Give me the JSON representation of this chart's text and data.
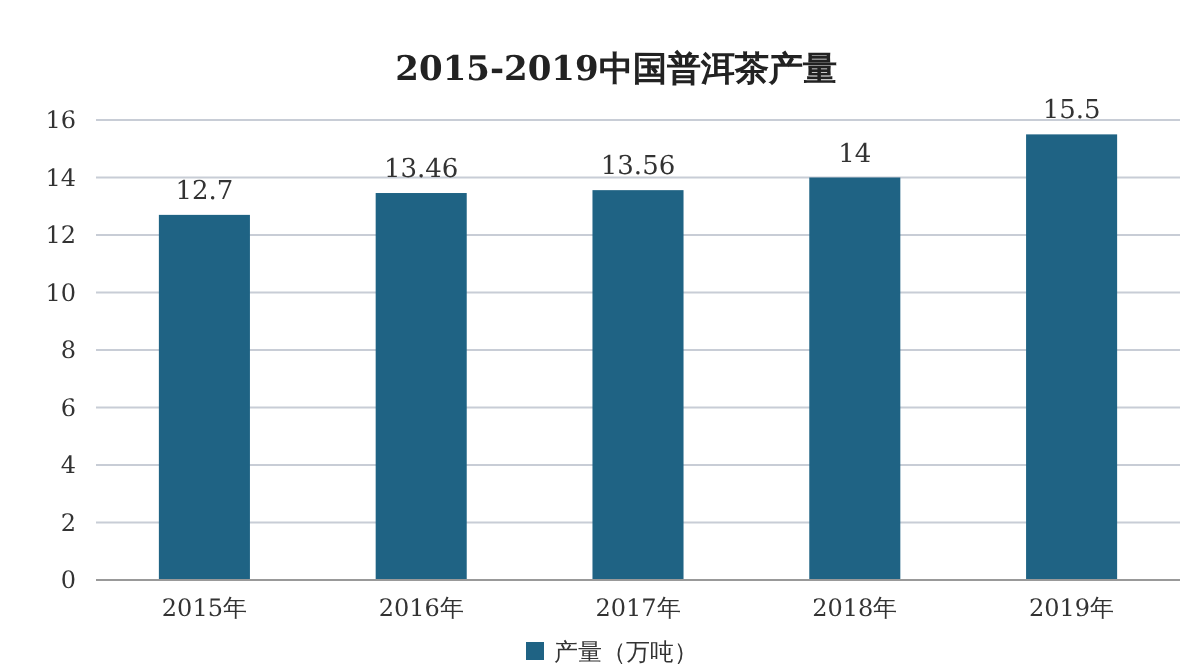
{
  "chart_data": {
    "type": "bar",
    "title": "2015-2019中国普洱茶产量",
    "categories": [
      "2015年",
      "2016年",
      "2017年",
      "2018年",
      "2019年"
    ],
    "series": [
      {
        "name": "产量（万吨）",
        "color": "#1f6384",
        "values": [
          12.7,
          13.46,
          13.56,
          14,
          15.5
        ]
      }
    ],
    "ylim": [
      0,
      16
    ],
    "yticks": [
      0,
      2,
      4,
      6,
      8,
      10,
      12,
      14,
      16
    ],
    "grid": "y",
    "legend": "bottom",
    "data_labels": true
  }
}
